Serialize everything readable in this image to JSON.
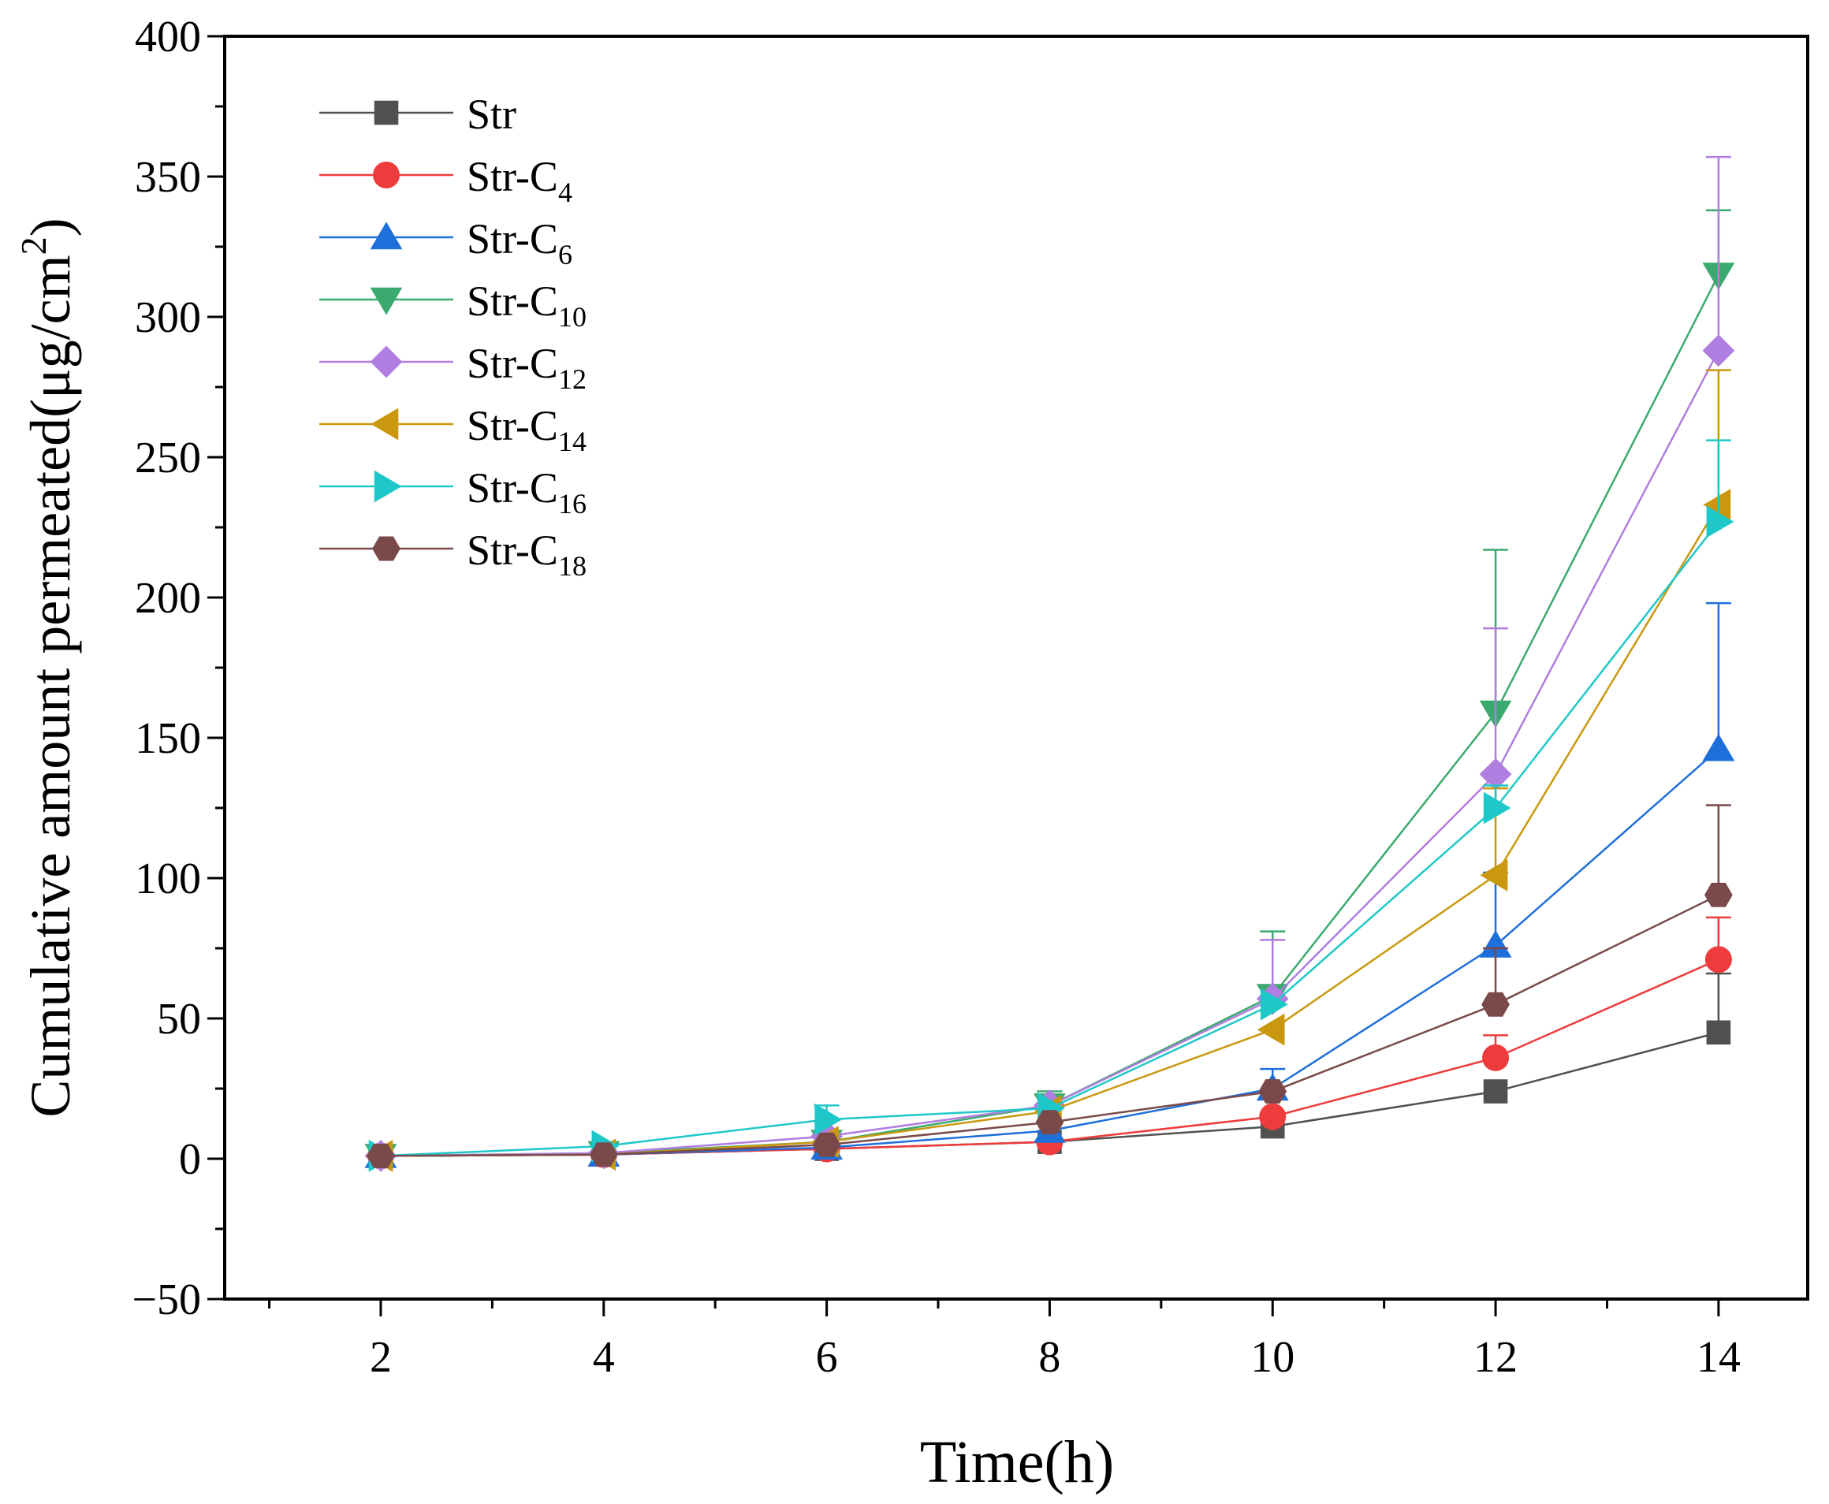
{
  "chart_data": {
    "type": "line",
    "title": "",
    "xlabel": "Time(h)",
    "ylabel": "Cumulative amount permeated(μg/cm²)",
    "ylabel_parts": {
      "main": "Cumulative amount permeated(μg/cm",
      "sup": "2",
      "close": ")"
    },
    "xlim": [
      0.6,
      14.8
    ],
    "ylim": [
      -50,
      400
    ],
    "x": [
      2,
      4,
      6,
      8,
      10,
      12,
      14
    ],
    "x_ticks": [
      2,
      4,
      6,
      8,
      10,
      12,
      14
    ],
    "y_ticks": [
      -50,
      0,
      50,
      100,
      150,
      200,
      250,
      300,
      350,
      400
    ],
    "grid": false,
    "legend_position": "top-left",
    "series": [
      {
        "name": "Str",
        "base": "Str",
        "sub": "",
        "color": "#505050",
        "marker": "square",
        "values": [
          1,
          1.5,
          3.5,
          6,
          11.5,
          24,
          45
        ],
        "errors": [
          0,
          0,
          0,
          0,
          0,
          0,
          21
        ]
      },
      {
        "name": "Str-C4",
        "base": "Str-C",
        "sub": "4",
        "color": "#ee3b3b",
        "marker": "circle",
        "values": [
          1,
          1.5,
          3.5,
          6,
          15,
          36,
          71
        ],
        "errors": [
          0,
          0,
          0,
          0,
          0,
          8,
          15
        ]
      },
      {
        "name": "Str-C6",
        "base": "Str-C",
        "sub": "6",
        "color": "#1f6fdb",
        "marker": "triangle-up",
        "values": [
          1,
          1.5,
          4,
          10,
          25,
          76,
          146
        ],
        "errors": [
          0,
          0,
          0,
          0,
          7,
          26,
          52
        ]
      },
      {
        "name": "Str-C10",
        "base": "Str-C",
        "sub": "10",
        "color": "#3aaa6e",
        "marker": "triangle-down",
        "values": [
          1,
          2,
          6,
          19,
          58,
          159,
          315
        ],
        "errors": [
          0,
          0,
          0,
          5,
          23,
          58,
          23
        ]
      },
      {
        "name": "Str-C12",
        "base": "Str-C",
        "sub": "12",
        "color": "#b07ee0",
        "marker": "diamond",
        "values": [
          1,
          2,
          8,
          19,
          57,
          137,
          288
        ],
        "errors": [
          0,
          0,
          0,
          0,
          21,
          52,
          69
        ]
      },
      {
        "name": "Str-C14",
        "base": "Str-C",
        "sub": "14",
        "color": "#c9980e",
        "marker": "triangle-left",
        "values": [
          1,
          1.5,
          6,
          17,
          46,
          101,
          233
        ],
        "errors": [
          0,
          0,
          0,
          0,
          0,
          31,
          48
        ]
      },
      {
        "name": "Str-C16",
        "base": "Str-C",
        "sub": "16",
        "color": "#1fc8c8",
        "marker": "triangle-right",
        "values": [
          1,
          4.5,
          14,
          18,
          55,
          125,
          227
        ],
        "errors": [
          0,
          0,
          5,
          0,
          0,
          8,
          29
        ]
      },
      {
        "name": "Str-C18",
        "base": "Str-C",
        "sub": "18",
        "color": "#7a4a4a",
        "marker": "hexagon",
        "values": [
          1,
          1.5,
          5,
          13,
          24,
          55,
          94
        ],
        "errors": [
          0,
          0,
          0,
          0,
          0,
          20,
          32
        ]
      }
    ]
  }
}
